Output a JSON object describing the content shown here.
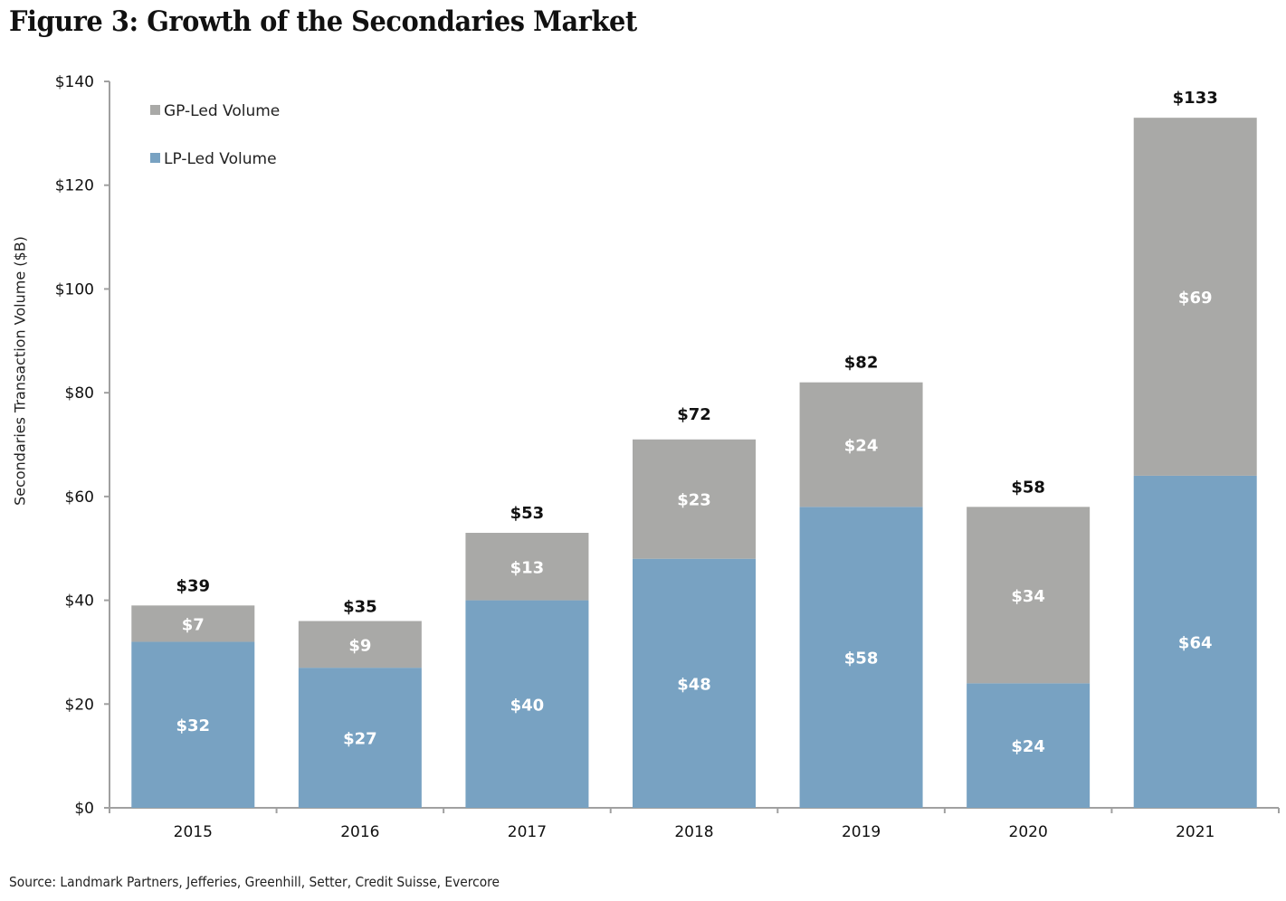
{
  "chart_data": {
    "type": "bar",
    "stacked": true,
    "title": "Figure 3: Growth of the Secondaries Market",
    "xlabel": "",
    "ylabel": "Secondaries Transaction Volume ($B)",
    "ylim": [
      0,
      140
    ],
    "yticks": [
      0,
      20,
      40,
      60,
      80,
      100,
      120,
      140
    ],
    "ytick_labels": [
      "$0",
      "$20",
      "$40",
      "$60",
      "$80",
      "$100",
      "$120",
      "$140"
    ],
    "grid": false,
    "legend_position": "top-left",
    "categories": [
      "2015",
      "2016",
      "2017",
      "2018",
      "2019",
      "2020",
      "2021"
    ],
    "series": [
      {
        "name": "LP-Led Volume",
        "color": "#78a2c2",
        "values": [
          32,
          27,
          40,
          48,
          58,
          24,
          64
        ],
        "labels": [
          "$32",
          "$27",
          "$40",
          "$48",
          "$58",
          "$24",
          "$64"
        ]
      },
      {
        "name": "GP-Led Volume",
        "color": "#a9a9a7",
        "values": [
          7,
          9,
          13,
          23,
          24,
          34,
          69
        ],
        "labels": [
          "$7",
          "$9",
          "$13",
          "$23",
          "$24",
          "$34",
          "$69"
        ]
      }
    ],
    "totals": [
      39,
      35,
      53,
      72,
      82,
      58,
      133
    ],
    "total_labels": [
      "$39",
      "$35",
      "$53",
      "$72",
      "$82",
      "$58",
      "$133"
    ],
    "legend": [
      {
        "name": "GP-Led Volume",
        "color": "#a9a9a7"
      },
      {
        "name": "LP-Led Volume",
        "color": "#78a2c2"
      }
    ]
  },
  "source": "Source: Landmark Partners, Jefferies, Greenhill, Setter, Credit Suisse, Evercore"
}
